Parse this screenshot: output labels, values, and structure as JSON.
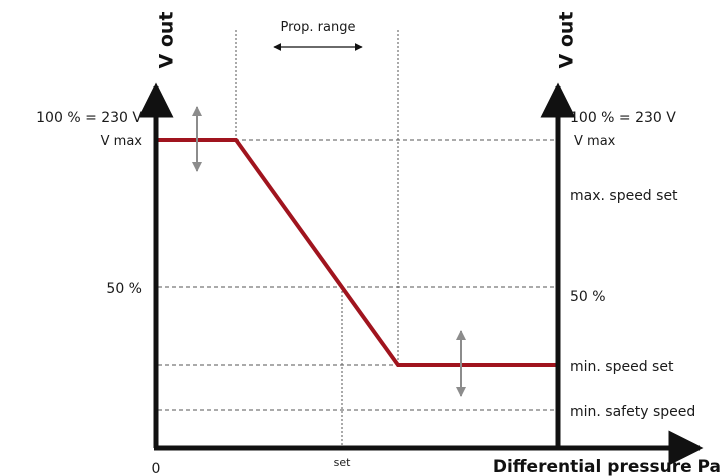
{
  "axes": {
    "y_left_title": "V out",
    "y_right_title": "V out",
    "x_title": "Differential pressure Pa",
    "origin_label": "0",
    "set_label": "set"
  },
  "range": {
    "label": "Prop. range"
  },
  "left_labels": {
    "max_line1": "100 % = 230 V",
    "max_line2": "V max",
    "half": "50 %"
  },
  "right_labels": {
    "max_line1": "100 % = 230 V",
    "max_line2": "V max",
    "max_speed": "max. speed set",
    "half": "50 %",
    "min_speed": "min. speed set",
    "min_safety": "min. safety speed"
  },
  "colors": {
    "curve": "#a0141e",
    "axis": "#111111",
    "guide": "#555555",
    "adjust_arrow": "#8c8c8c"
  },
  "chart_data": {
    "type": "line",
    "x_axis": "Differential pressure Pa",
    "y_axis": "V out",
    "y_levels": [
      "100 % = 230 V",
      "max. speed set",
      "50 %",
      "min. speed set",
      "min. safety speed"
    ],
    "x_markers": [
      "0",
      "set"
    ],
    "segments": [
      {
        "from": "0",
        "to": "start of Prop. range",
        "level": "100 % = 230 V (max. speed set)"
      },
      {
        "from": "start of Prop. range",
        "to": "end of Prop. range",
        "level": "linear decrease",
        "crosses_50_percent_at": "set"
      },
      {
        "from": "end of Prop. range",
        "to": "max",
        "level": "min. speed set"
      }
    ]
  }
}
